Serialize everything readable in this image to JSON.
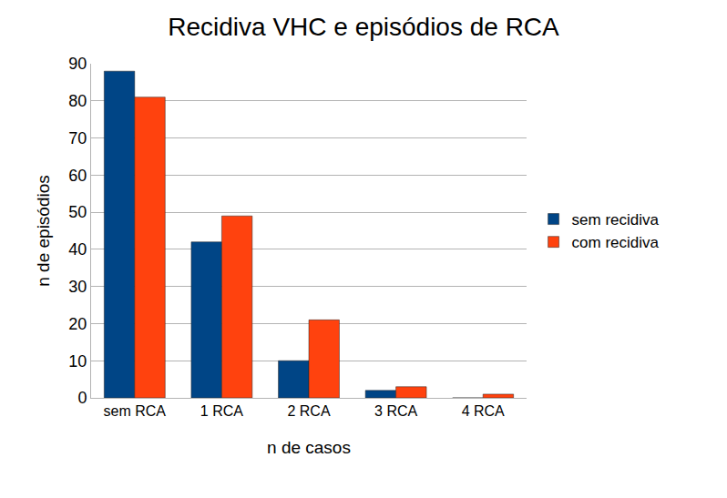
{
  "chart_data": {
    "type": "bar",
    "title": "Recidiva VHC e episódios de RCA",
    "x_label": "n de casos",
    "y_label": "n de episódios",
    "categories": [
      "sem RCA",
      "1 RCA",
      "2 RCA",
      "3 RCA",
      "4 RCA"
    ],
    "series": [
      {
        "name": "sem recidiva",
        "color": "#004586",
        "values": [
          88,
          42,
          10,
          2,
          0
        ]
      },
      {
        "name": "com recidiva",
        "color": "#ff420e",
        "values": [
          81,
          49,
          21,
          3,
          1
        ]
      }
    ],
    "ylim": [
      0,
      90
    ],
    "yticks": [
      0,
      10,
      20,
      30,
      40,
      50,
      60,
      70,
      80,
      90
    ],
    "grid": true,
    "legend": "right"
  }
}
